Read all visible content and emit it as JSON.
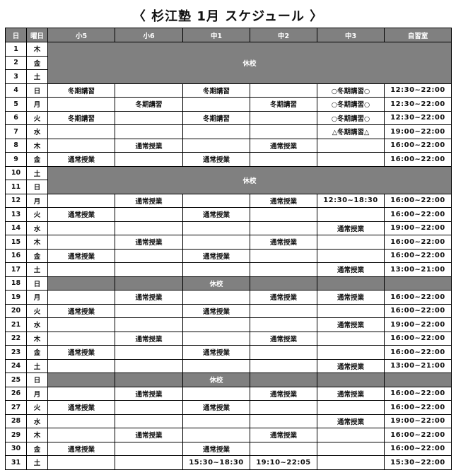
{
  "title": "〈 杉江塾 1月 スケジュール 〉",
  "columns": [
    "日",
    "曜日",
    "小5",
    "小6",
    "中1",
    "中2",
    "中3",
    "自習室"
  ],
  "closed_label": "休校",
  "colors": {
    "header_bg": "#808080",
    "closed_bg": "#808080",
    "header_text": "#ffffff"
  },
  "rows": [
    {
      "day": "1",
      "dow": "木",
      "closed": "merged"
    },
    {
      "day": "2",
      "dow": "金",
      "closed": "merged"
    },
    {
      "day": "3",
      "dow": "土",
      "closed": "merged"
    },
    {
      "day": "4",
      "dow": "日",
      "cells": [
        "冬期講習",
        "",
        "冬期講習",
        "",
        "○冬期講習○",
        "12:30~22:00"
      ]
    },
    {
      "day": "5",
      "dow": "月",
      "cells": [
        "",
        "冬期講習",
        "",
        "冬期講習",
        "○冬期講習○",
        "12:30~22:00"
      ]
    },
    {
      "day": "6",
      "dow": "火",
      "cells": [
        "冬期講習",
        "",
        "冬期講習",
        "",
        "○冬期講習○",
        "12:30~22:00"
      ]
    },
    {
      "day": "7",
      "dow": "水",
      "cells": [
        "",
        "",
        "",
        "",
        "△冬期講習△",
        "19:00~22:00"
      ]
    },
    {
      "day": "8",
      "dow": "木",
      "cells": [
        "",
        "通常授業",
        "",
        "通常授業",
        "",
        "16:00~22:00"
      ]
    },
    {
      "day": "9",
      "dow": "金",
      "cells": [
        "通常授業",
        "",
        "通常授業",
        "",
        "",
        "16:00~22:00"
      ]
    },
    {
      "day": "10",
      "dow": "土",
      "closed": "merged"
    },
    {
      "day": "11",
      "dow": "日",
      "closed": "merged"
    },
    {
      "day": "12",
      "dow": "月",
      "cells": [
        "",
        "通常授業",
        "",
        "通常授業",
        "12:30~18:30",
        "16:00~22:00"
      ]
    },
    {
      "day": "13",
      "dow": "火",
      "cells": [
        "通常授業",
        "",
        "通常授業",
        "",
        "",
        "16:00~22:00"
      ]
    },
    {
      "day": "14",
      "dow": "水",
      "cells": [
        "",
        "",
        "",
        "",
        "通常授業",
        "19:00~22:00"
      ]
    },
    {
      "day": "15",
      "dow": "木",
      "cells": [
        "",
        "通常授業",
        "",
        "通常授業",
        "",
        "16:00~22:00"
      ]
    },
    {
      "day": "16",
      "dow": "金",
      "cells": [
        "通常授業",
        "",
        "通常授業",
        "",
        "",
        "16:00~22:00"
      ]
    },
    {
      "day": "17",
      "dow": "土",
      "cells": [
        "",
        "",
        "",
        "",
        "通常授業",
        "13:00~21:00"
      ]
    },
    {
      "day": "18",
      "dow": "日",
      "closed": "row"
    },
    {
      "day": "19",
      "dow": "月",
      "cells": [
        "",
        "通常授業",
        "",
        "通常授業",
        "通常授業",
        "16:00~22:00"
      ]
    },
    {
      "day": "20",
      "dow": "火",
      "cells": [
        "通常授業",
        "",
        "通常授業",
        "",
        "",
        "16:00~22:00"
      ]
    },
    {
      "day": "21",
      "dow": "水",
      "cells": [
        "",
        "",
        "",
        "",
        "通常授業",
        "19:00~22:00"
      ]
    },
    {
      "day": "22",
      "dow": "木",
      "cells": [
        "",
        "通常授業",
        "",
        "通常授業",
        "",
        "16:00~22:00"
      ]
    },
    {
      "day": "23",
      "dow": "金",
      "cells": [
        "通常授業",
        "",
        "通常授業",
        "",
        "",
        "16:00~22:00"
      ]
    },
    {
      "day": "24",
      "dow": "土",
      "cells": [
        "",
        "",
        "",
        "",
        "通常授業",
        "13:00~21:00"
      ]
    },
    {
      "day": "25",
      "dow": "日",
      "closed": "row"
    },
    {
      "day": "26",
      "dow": "月",
      "cells": [
        "",
        "通常授業",
        "",
        "通常授業",
        "通常授業",
        "16:00~22:00"
      ]
    },
    {
      "day": "27",
      "dow": "火",
      "cells": [
        "通常授業",
        "",
        "通常授業",
        "",
        "",
        "16:00~22:00"
      ]
    },
    {
      "day": "28",
      "dow": "水",
      "cells": [
        "",
        "",
        "",
        "",
        "通常授業",
        "19:00~22:00"
      ]
    },
    {
      "day": "29",
      "dow": "木",
      "cells": [
        "",
        "通常授業",
        "",
        "通常授業",
        "",
        "16:00~22:00"
      ]
    },
    {
      "day": "30",
      "dow": "金",
      "cells": [
        "通常授業",
        "",
        "通常授業",
        "",
        "",
        "16:00~22:00"
      ]
    },
    {
      "day": "31",
      "dow": "土",
      "cells": [
        "",
        "",
        "15:30~18:30",
        "19:10~22:05",
        "",
        "15:30~22:00"
      ]
    }
  ]
}
